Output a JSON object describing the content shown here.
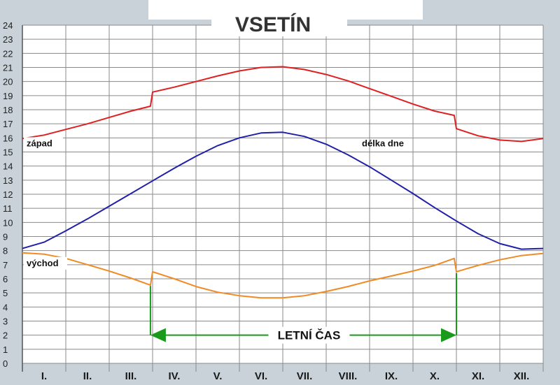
{
  "chart_data": {
    "type": "line",
    "title": "VSETÍN",
    "categories": [
      "I.",
      "II.",
      "III.",
      "IV.",
      "V.",
      "VI.",
      "VII.",
      "VIII.",
      "IX.",
      "X.",
      "XI.",
      "XII."
    ],
    "yticks": [
      0,
      1,
      2,
      3,
      4,
      5,
      6,
      7,
      8,
      9,
      10,
      11,
      12,
      13,
      14,
      15,
      16,
      17,
      18,
      19,
      20,
      21,
      22,
      23,
      24
    ],
    "ylim": [
      0,
      24
    ],
    "xlim": [
      0,
      12
    ],
    "grid": true,
    "series": [
      {
        "name": "západ",
        "color": "#e02020",
        "x": [
          0,
          0.5,
          1,
          1.5,
          2,
          2.5,
          2.95,
          3.0,
          3.5,
          4,
          4.5,
          5,
          5.5,
          6,
          6.5,
          7,
          7.5,
          8,
          8.5,
          9,
          9.5,
          9.95,
          10.0,
          10.5,
          11,
          11.5,
          12
        ],
        "values": [
          15.95,
          16.2,
          16.6,
          17.0,
          17.45,
          17.9,
          18.25,
          19.25,
          19.6,
          20.0,
          20.4,
          20.75,
          21.0,
          21.05,
          20.85,
          20.5,
          20.05,
          19.5,
          18.95,
          18.4,
          17.9,
          17.6,
          16.65,
          16.15,
          15.85,
          15.75,
          15.95
        ]
      },
      {
        "name": "délka dne",
        "color": "#2020a8",
        "x": [
          0,
          0.5,
          1,
          1.5,
          2,
          2.5,
          3,
          3.5,
          4,
          4.5,
          5,
          5.5,
          6,
          6.5,
          7,
          7.5,
          8,
          8.5,
          9,
          9.5,
          10,
          10.5,
          11,
          11.5,
          12
        ],
        "values": [
          8.15,
          8.6,
          9.4,
          10.25,
          11.15,
          12.05,
          12.95,
          13.85,
          14.7,
          15.45,
          16.0,
          16.35,
          16.4,
          16.1,
          15.55,
          14.8,
          13.95,
          13.0,
          12.05,
          11.05,
          10.1,
          9.2,
          8.5,
          8.1,
          8.15
        ]
      },
      {
        "name": "východ",
        "color": "#f08a24",
        "x": [
          0,
          0.5,
          1,
          1.5,
          2,
          2.5,
          2.95,
          3.0,
          3.5,
          4,
          4.5,
          5,
          5.5,
          6,
          6.5,
          7,
          7.5,
          8,
          8.5,
          9,
          9.5,
          9.95,
          10.0,
          10.5,
          11,
          11.5,
          12
        ],
        "values": [
          7.85,
          7.75,
          7.45,
          7.0,
          6.55,
          6.05,
          5.55,
          6.5,
          6.0,
          5.45,
          5.05,
          4.8,
          4.65,
          4.65,
          4.8,
          5.1,
          5.45,
          5.85,
          6.2,
          6.55,
          6.95,
          7.45,
          6.5,
          6.95,
          7.35,
          7.65,
          7.8
        ]
      }
    ],
    "annotation": {
      "text": "LETNÍ   ČAS",
      "from_x": 2.95,
      "to_x": 10.0,
      "y": 2,
      "color": "#1a9a1a"
    },
    "gridline_color": "#8a8a8a",
    "background": "#ffffff"
  }
}
